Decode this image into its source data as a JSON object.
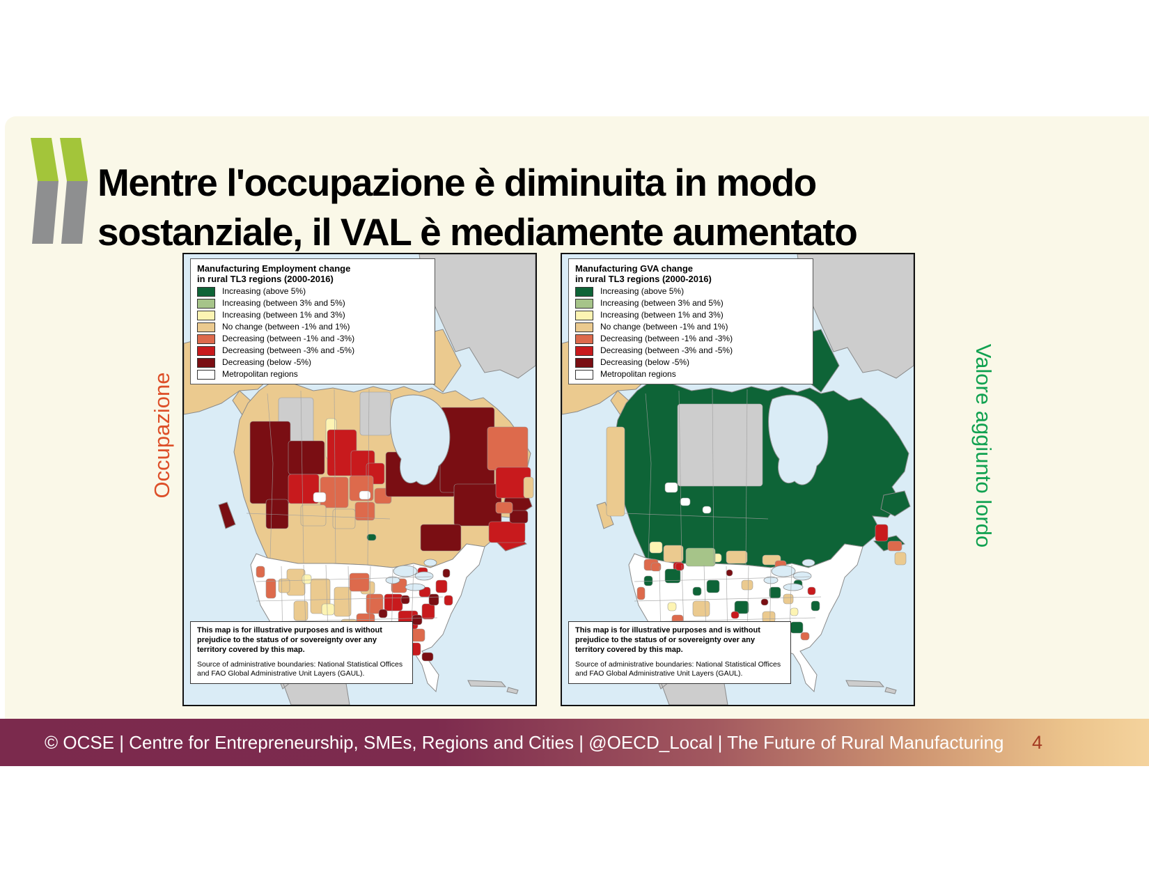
{
  "slide": {
    "title_line1": "Mentre l'occupazione è diminuita in modo",
    "title_line2": "sostanziale, il VAL è mediamente aumentato",
    "background_color": "#faf8e8"
  },
  "logo": {
    "name": "oecd-double-chevron",
    "green": "#a3c53a",
    "gray": "#8e8f90"
  },
  "footer": {
    "text": "© OCSE | Centre for Entrepreneurship, SMEs, Regions and Cities | @OECD_Local |  The Future of Rural Manufacturing",
    "page_number": "4",
    "page_number_color": "#a43b22"
  },
  "palette": {
    "dark_green": "#0e6437",
    "light_green": "#a6c489",
    "pale_yellow": "#fdf4b3",
    "tan": "#ebca8f",
    "salmon": "#dd6a4c",
    "red": "#c81a1d",
    "dark_red": "#7a0e13",
    "white": "#ffffff",
    "gray": "#cdcdcd",
    "ocean": "#daecf6"
  },
  "legend_items": [
    {
      "label": "Increasing (above 5%)",
      "color": "dark_green"
    },
    {
      "label": "Increasing (between 3% and 5%)",
      "color": "light_green"
    },
    {
      "label": "Increasing (between 1% and 3%)",
      "color": "pale_yellow"
    },
    {
      "label": "No change (between -1% and 1%)",
      "color": "tan"
    },
    {
      "label": "Decreasing (between -1% and -3%)",
      "color": "salmon"
    },
    {
      "label": "Decreasing (between -3% and -5%)",
      "color": "red"
    },
    {
      "label": "Decreasing (below -5%)",
      "color": "dark_red"
    },
    {
      "label": "Metropolitan regions",
      "color": "white"
    }
  ],
  "disclaimer": {
    "bold_text": "This map is for illustrative purposes and is without prejudice to the status of or sovereignty over any territory covered by this map.",
    "source_text": "Source of administrative boundaries: National Statistical Offices and FAO Global Administrative Unit Layers (GAUL)."
  },
  "maps": {
    "left": {
      "side_label": "Occupazione",
      "side_label_color": "#dd4f28",
      "legend_title_line1": "Manufacturing Employment change",
      "legend_title_line2": "in rural TL3 regions (2000-2016)",
      "region_fills": {
        "greenland": "gray",
        "arctic": "tan",
        "alaska": "tan",
        "canada": "tan",
        "vanisle": "dark_red",
        "nfld": "dark_red",
        "ns": "red",
        "us": "white",
        "mexico": "gray",
        "cuba": "gray"
      },
      "patches": [
        [
          136,
          206,
          50,
          82,
          "gray"
        ],
        [
          253,
          198,
          44,
          62,
          "gray"
        ],
        [
          95,
          240,
          58,
          118,
          "dark_red"
        ],
        [
          118,
          352,
          32,
          42,
          "dark_red"
        ],
        [
          150,
          268,
          52,
          48,
          "dark_red"
        ],
        [
          204,
          236,
          15,
          58,
          "pale_yellow"
        ],
        [
          206,
          252,
          42,
          66,
          "red"
        ],
        [
          150,
          316,
          44,
          42,
          "red"
        ],
        [
          240,
          282,
          34,
          38,
          "red"
        ],
        [
          262,
          300,
          26,
          30,
          "red"
        ],
        [
          196,
          320,
          40,
          44,
          "salmon"
        ],
        [
          238,
          318,
          34,
          36,
          "salmon"
        ],
        [
          246,
          356,
          28,
          26,
          "salmon"
        ],
        [
          274,
          336,
          24,
          22,
          "salmon"
        ],
        [
          168,
          360,
          36,
          30,
          "tan"
        ],
        [
          214,
          366,
          32,
          28,
          "tan"
        ],
        [
          186,
          342,
          18,
          14,
          "white"
        ],
        [
          252,
          340,
          16,
          12,
          "white"
        ],
        [
          263,
          402,
          13,
          9,
          "dark_green"
        ],
        [
          290,
          284,
          100,
          64,
          "dark_red"
        ],
        [
          368,
          220,
          78,
          122,
          "dark_red"
        ],
        [
          388,
          330,
          68,
          60,
          "dark_red"
        ],
        [
          340,
          388,
          58,
          38,
          "dark_red"
        ],
        [
          436,
          248,
          58,
          62,
          "salmon"
        ],
        [
          448,
          306,
          50,
          44,
          "red"
        ],
        [
          438,
          384,
          52,
          30,
          "red"
        ],
        [
          468,
          368,
          26,
          18,
          "dark_red"
        ],
        [
          448,
          356,
          24,
          16,
          "salmon"
        ],
        [
          488,
          320,
          14,
          30,
          "tan"
        ],
        [
          148,
          452,
          26,
          38,
          "tan"
        ],
        [
          182,
          466,
          28,
          50,
          "tan"
        ],
        [
          216,
          478,
          24,
          42,
          "tan"
        ],
        [
          158,
          498,
          20,
          28,
          "tan"
        ],
        [
          226,
          524,
          22,
          26,
          "tan"
        ],
        [
          136,
          466,
          16,
          20,
          "tan"
        ],
        [
          254,
          470,
          20,
          18,
          "tan"
        ],
        [
          204,
          556,
          18,
          16,
          "tan"
        ],
        [
          198,
          502,
          18,
          16,
          "pale_yellow"
        ],
        [
          170,
          460,
          13,
          13,
          "pale_yellow"
        ],
        [
          246,
          538,
          14,
          12,
          "pale_yellow"
        ],
        [
          238,
          458,
          28,
          26,
          "salmon"
        ],
        [
          262,
          488,
          24,
          28,
          "salmon"
        ],
        [
          248,
          516,
          26,
          24,
          "salmon"
        ],
        [
          214,
          552,
          28,
          28,
          "salmon"
        ],
        [
          232,
          572,
          24,
          22,
          "salmon"
        ],
        [
          298,
          466,
          22,
          20,
          "salmon"
        ],
        [
          326,
          538,
          20,
          18,
          "salmon"
        ],
        [
          118,
          466,
          14,
          28,
          "salmon"
        ],
        [
          104,
          448,
          12,
          16,
          "salmon"
        ],
        [
          286,
          590,
          20,
          14,
          "salmon"
        ],
        [
          256,
          584,
          18,
          16,
          "salmon"
        ],
        [
          288,
          488,
          26,
          24,
          "red"
        ],
        [
          308,
          512,
          28,
          26,
          "red"
        ],
        [
          282,
          542,
          24,
          22,
          "red"
        ],
        [
          318,
          558,
          22,
          18,
          "red"
        ],
        [
          342,
          502,
          18,
          22,
          "red"
        ],
        [
          362,
          468,
          16,
          18,
          "red"
        ],
        [
          338,
          478,
          16,
          14,
          "red"
        ],
        [
          336,
          450,
          14,
          12,
          "red"
        ],
        [
          300,
          582,
          20,
          14,
          "red"
        ],
        [
          374,
          490,
          12,
          14,
          "red"
        ],
        [
          268,
          528,
          18,
          20,
          "dark_red"
        ],
        [
          302,
          546,
          16,
          16,
          "dark_red"
        ],
        [
          328,
          518,
          14,
          14,
          "dark_red"
        ],
        [
          352,
          488,
          14,
          16,
          "dark_red"
        ],
        [
          342,
          572,
          16,
          12,
          "dark_red"
        ],
        [
          280,
          510,
          12,
          12,
          "dark_red"
        ],
        [
          372,
          452,
          10,
          12,
          "dark_red"
        ],
        [
          312,
          490,
          12,
          12,
          "dark_red"
        ]
      ]
    },
    "right": {
      "side_label": "Valore aggiunto lordo",
      "side_label_color": "#10a150",
      "legend_title_line1": "Manufacturing GVA change",
      "legend_title_line2": "in rural TL3 regions (2000-2016)",
      "region_fills": {
        "greenland": "gray",
        "arctic": "dark_green",
        "alaska": "tan",
        "canada": "dark_green",
        "vanisle": "tan",
        "nfld": "dark_green",
        "ns": "dark_green",
        "us": "white",
        "mexico": "gray",
        "cuba": "gray"
      },
      "patches": [
        [
          166,
          215,
          122,
          118,
          "gray"
        ],
        [
          64,
          248,
          26,
          128,
          "tan"
        ],
        [
          148,
          328,
          18,
          14,
          "white"
        ],
        [
          170,
          350,
          14,
          11,
          "white"
        ],
        [
          202,
          362,
          12,
          10,
          "white"
        ],
        [
          146,
          418,
          28,
          24,
          "tan"
        ],
        [
          236,
          426,
          30,
          18,
          "tan"
        ],
        [
          288,
          432,
          26,
          14,
          "tan"
        ],
        [
          126,
          413,
          18,
          16,
          "pale_yellow"
        ],
        [
          213,
          430,
          16,
          12,
          "pale_yellow"
        ],
        [
          178,
          422,
          42,
          26,
          "light_green"
        ],
        [
          118,
          438,
          20,
          16,
          "salmon"
        ],
        [
          306,
          440,
          16,
          12,
          "salmon"
        ],
        [
          160,
          442,
          14,
          12,
          "red"
        ],
        [
          450,
          388,
          18,
          24,
          "red"
        ],
        [
          468,
          412,
          20,
          14,
          "salmon"
        ],
        [
          478,
          428,
          16,
          18,
          "tan"
        ],
        [
          148,
          452,
          22,
          20,
          "dark_green"
        ],
        [
          208,
          468,
          18,
          18,
          "dark_green"
        ],
        [
          248,
          498,
          20,
          18,
          "dark_green"
        ],
        [
          298,
          478,
          16,
          16,
          "dark_green"
        ],
        [
          328,
          528,
          18,
          16,
          "dark_green"
        ],
        [
          278,
          558,
          16,
          14,
          "dark_green"
        ],
        [
          333,
          468,
          12,
          12,
          "dark_green"
        ],
        [
          358,
          498,
          12,
          14,
          "dark_green"
        ],
        [
          238,
          583,
          14,
          12,
          "dark_green"
        ],
        [
          308,
          448,
          10,
          10,
          "dark_green"
        ],
        [
          118,
          462,
          12,
          14,
          "dark_green"
        ],
        [
          188,
          478,
          12,
          12,
          "dark_green"
        ],
        [
          188,
          498,
          24,
          22,
          "tan"
        ],
        [
          222,
          528,
          22,
          20,
          "tan"
        ],
        [
          172,
          543,
          20,
          18,
          "tan"
        ],
        [
          288,
          513,
          18,
          16,
          "tan"
        ],
        [
          318,
          488,
          14,
          14,
          "tan"
        ],
        [
          258,
          468,
          16,
          14,
          "tan"
        ],
        [
          202,
          590,
          16,
          14,
          "tan"
        ],
        [
          238,
          543,
          18,
          16,
          "pale_yellow"
        ],
        [
          268,
          533,
          14,
          12,
          "pale_yellow"
        ],
        [
          298,
          553,
          16,
          12,
          "pale_yellow"
        ],
        [
          203,
          558,
          14,
          12,
          "pale_yellow"
        ],
        [
          328,
          508,
          11,
          11,
          "pale_yellow"
        ],
        [
          152,
          500,
          12,
          12,
          "pale_yellow"
        ],
        [
          262,
          543,
          10,
          10,
          "light_green"
        ],
        [
          158,
          518,
          16,
          14,
          "salmon"
        ],
        [
          213,
          598,
          18,
          14,
          "salmon"
        ],
        [
          108,
          478,
          11,
          18,
          "salmon"
        ],
        [
          343,
          543,
          12,
          11,
          "salmon"
        ],
        [
          128,
          443,
          14,
          12,
          "salmon"
        ],
        [
          303,
          568,
          12,
          11,
          "red"
        ],
        [
          353,
          478,
          11,
          11,
          "red"
        ],
        [
          163,
          443,
          12,
          11,
          "red"
        ],
        [
          243,
          513,
          11,
          10,
          "red"
        ],
        [
          256,
          546,
          11,
          11,
          "dark_red"
        ],
        [
          236,
          453,
          9,
          9,
          "dark_red"
        ],
        [
          286,
          495,
          10,
          9,
          "dark_red"
        ]
      ]
    }
  }
}
